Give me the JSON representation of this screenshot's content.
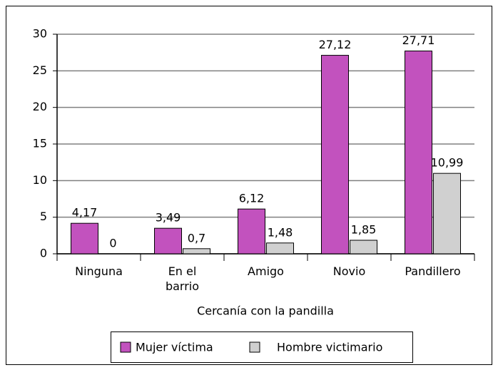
{
  "chart_data": {
    "type": "bar",
    "categories": [
      "Ninguna",
      "En el\nbarrio",
      "Amigo",
      "Novio",
      "Pandillero"
    ],
    "xlabel": "Cercanía con la pandilla",
    "series": [
      {
        "name": "Mujer víctima",
        "color": "#c252be",
        "values": [
          4.17,
          3.49,
          6.12,
          27.12,
          27.71
        ],
        "value_labels": [
          "4,17",
          "3,49",
          "6,12",
          "27,12",
          "27,71"
        ]
      },
      {
        "name": "Hombre victimario",
        "color": "#d0d0d0",
        "values": [
          0,
          0.7,
          1.48,
          1.85,
          10.99
        ],
        "value_labels": [
          "0",
          "0,7",
          "1,48",
          "1,85",
          "10,99"
        ]
      }
    ],
    "ylim": [
      0,
      30
    ],
    "yticks": [
      0,
      5,
      10,
      15,
      20,
      25,
      30
    ],
    "grid": true,
    "legend": "bottom"
  }
}
